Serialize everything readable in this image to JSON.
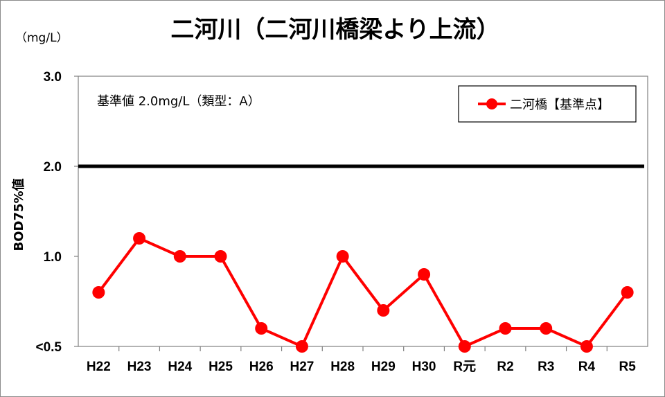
{
  "chart_data": {
    "type": "line",
    "title": "二河川（二河川橋梁より上流）",
    "unit_label": "（mg/L）",
    "ylabel": "BOD75%値",
    "ylim": [
      0.5,
      3.0
    ],
    "y_ticks": [
      {
        "value": 3.0,
        "label": "3.0"
      },
      {
        "value": 2.0,
        "label": "2.0"
      },
      {
        "value": 1.0,
        "label": "1.0"
      },
      {
        "value": 0.5,
        "label": "<0.5"
      }
    ],
    "categories": [
      "H22",
      "H23",
      "H24",
      "H25",
      "H26",
      "H27",
      "H28",
      "H29",
      "H30",
      "R元",
      "R2",
      "R3",
      "R4",
      "R5"
    ],
    "series": [
      {
        "name": "二河橋【基準点】",
        "color": "#ff0000",
        "values": [
          0.8,
          1.2,
          1.0,
          1.0,
          0.6,
          0.5,
          1.0,
          0.7,
          0.9,
          0.5,
          0.6,
          0.6,
          0.5,
          0.8
        ]
      }
    ],
    "reference_line": {
      "value": 2.0,
      "color": "#000000"
    },
    "annotation": "基準値  2.0mg/L（類型：A）",
    "legend_position": "top-right",
    "grid": false
  }
}
